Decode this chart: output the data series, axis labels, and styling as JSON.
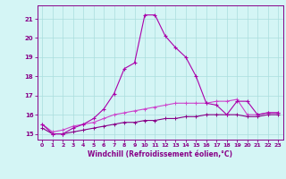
{
  "title": "",
  "xlabel": "Windchill (Refroidissement éolien,°C)",
  "bg_color": "#d4f5f5",
  "grid_color": "#aadddd",
  "line_color1": "#aa00aa",
  "line_color2": "#cc44cc",
  "line_color3": "#880088",
  "x_values": [
    0,
    1,
    2,
    3,
    4,
    5,
    6,
    7,
    8,
    9,
    10,
    11,
    12,
    13,
    14,
    15,
    16,
    17,
    18,
    19,
    20,
    21,
    22,
    23
  ],
  "y_main": [
    15.5,
    15.0,
    15.0,
    15.3,
    15.5,
    15.8,
    16.3,
    17.1,
    18.4,
    18.7,
    21.2,
    21.2,
    20.1,
    19.5,
    19.0,
    18.0,
    16.6,
    16.5,
    16.0,
    16.7,
    16.7,
    16.0,
    16.1,
    16.1
  ],
  "y_line2": [
    15.5,
    15.1,
    15.2,
    15.4,
    15.5,
    15.6,
    15.8,
    16.0,
    16.1,
    16.2,
    16.3,
    16.4,
    16.5,
    16.6,
    16.6,
    16.6,
    16.6,
    16.7,
    16.7,
    16.8,
    16.0,
    16.0,
    16.1,
    16.1
  ],
  "y_line3": [
    15.3,
    15.0,
    15.0,
    15.1,
    15.2,
    15.3,
    15.4,
    15.5,
    15.6,
    15.6,
    15.7,
    15.7,
    15.8,
    15.8,
    15.9,
    15.9,
    16.0,
    16.0,
    16.0,
    16.0,
    15.9,
    15.9,
    16.0,
    16.0
  ],
  "ylim": [
    14.7,
    21.7
  ],
  "yticks": [
    15,
    16,
    17,
    18,
    19,
    20,
    21
  ],
  "xticks": [
    0,
    1,
    2,
    3,
    4,
    5,
    6,
    7,
    8,
    9,
    10,
    11,
    12,
    13,
    14,
    15,
    16,
    17,
    18,
    19,
    20,
    21,
    22,
    23
  ],
  "spine_color": "#880088",
  "tick_color": "#880088",
  "label_color": "#880088"
}
